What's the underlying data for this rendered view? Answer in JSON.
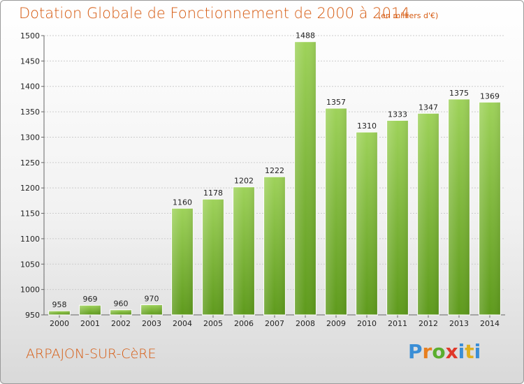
{
  "header": {
    "title": "Dotation Globale de Fonctionnement de 2000 à 2014",
    "unit": "(en milliers d'€)"
  },
  "footer": {
    "commune": "ARPAJON-SUR-CèRE",
    "logo_letters": [
      "P",
      "r",
      "o",
      "x",
      "i",
      "t",
      "i"
    ]
  },
  "colors": {
    "title": "#d65a10",
    "bar_top": "#9ed25a",
    "bar_bottom": "#5e9a1c",
    "grid": "#cccccc",
    "axis_text": "#222222"
  },
  "chart_data": {
    "type": "bar",
    "title": "Dotation Globale de Fonctionnement de 2000 à 2014",
    "xlabel": "",
    "ylabel": "",
    "categories": [
      "2000",
      "2001",
      "2002",
      "2003",
      "2004",
      "2005",
      "2006",
      "2007",
      "2008",
      "2009",
      "2010",
      "2011",
      "2012",
      "2013",
      "2014"
    ],
    "values": [
      958,
      969,
      960,
      970,
      1160,
      1178,
      1202,
      1222,
      1488,
      1357,
      1310,
      1333,
      1347,
      1375,
      1369
    ],
    "ylim": [
      950,
      1500
    ],
    "yticks": [
      950,
      1000,
      1050,
      1100,
      1150,
      1200,
      1250,
      1300,
      1350,
      1400,
      1450,
      1500
    ],
    "grid": true,
    "legend": "none"
  }
}
